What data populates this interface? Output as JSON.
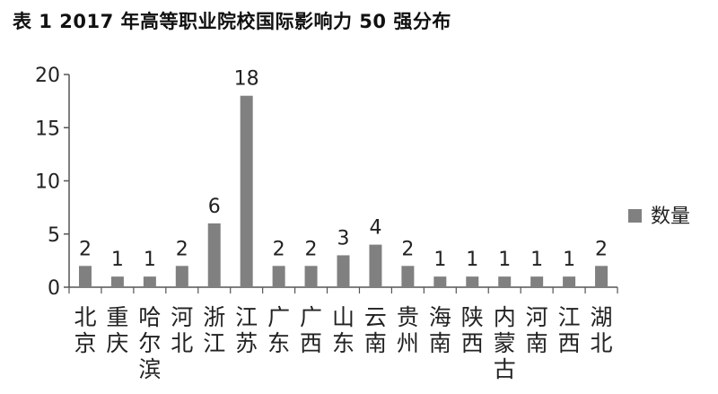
{
  "chart_data": {
    "type": "bar",
    "title": "表 1  2017 年高等职业院校国际影响力 50 强分布",
    "categories": [
      "北京",
      "重庆",
      "哈尔滨",
      "河北",
      "浙江",
      "江苏",
      "广东",
      "广西",
      "山东",
      "云南",
      "贵州",
      "海南",
      "陕西",
      "内蒙古",
      "河南",
      "江西",
      "湖北"
    ],
    "series": [
      {
        "name": "数量",
        "values": [
          2,
          1,
          1,
          2,
          6,
          18,
          2,
          2,
          3,
          4,
          2,
          1,
          1,
          1,
          1,
          1,
          2
        ]
      }
    ],
    "ylim": [
      0,
      20
    ],
    "yticks": [
      0,
      5,
      10,
      15,
      20
    ],
    "xlabel": "",
    "ylabel": "",
    "grid": false,
    "legend": "right",
    "bar_color": "#808080",
    "axis_color": "#555555"
  }
}
